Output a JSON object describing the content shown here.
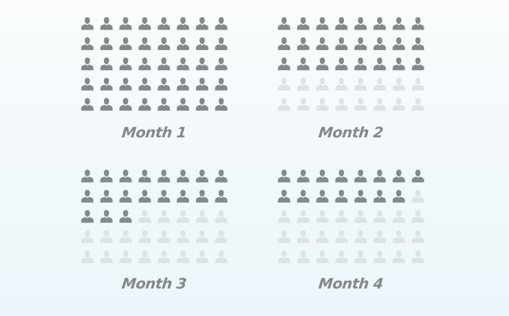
{
  "chart_data": [
    {
      "type": "pictogram",
      "label": "Month 1",
      "rows": 5,
      "columns": 8,
      "total": 40,
      "filled": 40
    },
    {
      "type": "pictogram",
      "label": "Month 2",
      "rows": 5,
      "columns": 8,
      "total": 40,
      "filled": 24
    },
    {
      "type": "pictogram",
      "label": "Month 3",
      "rows": 5,
      "columns": 8,
      "total": 40,
      "filled": 19
    },
    {
      "type": "pictogram",
      "label": "Month 4",
      "rows": 5,
      "columns": 8,
      "total": 40,
      "filled": 15
    }
  ],
  "colors": {
    "filled": "#838a8c",
    "empty": "#dde2e4",
    "label": "#848889"
  },
  "icon": "person-icon"
}
